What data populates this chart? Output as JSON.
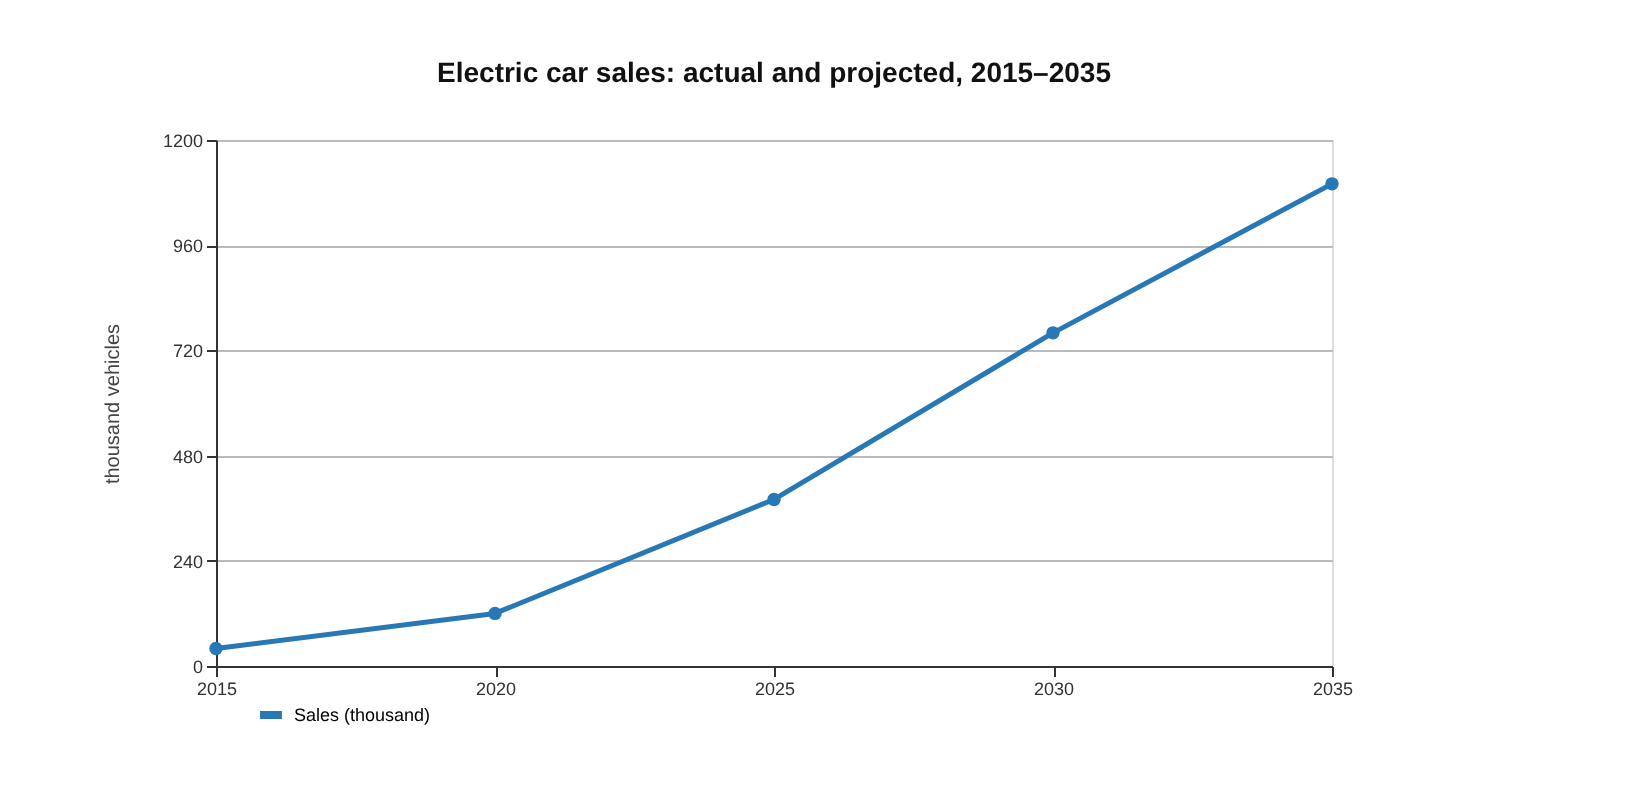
{
  "chart_data": {
    "type": "line",
    "title": "Electric car sales: actual and projected, 2015–2035",
    "ylabel": "thousand vehicles",
    "x": [
      2015,
      2020,
      2025,
      2030,
      2035
    ],
    "series": [
      {
        "name": "Sales (thousand)",
        "color": "#2878b5",
        "values": [
          40,
          120,
          380,
          760,
          1100
        ]
      }
    ],
    "xlim": [
      2015,
      2035
    ],
    "xticks": [
      2015,
      2020,
      2025,
      2030,
      2035
    ],
    "ylim": [
      0,
      1200
    ],
    "yticks": [
      0,
      240,
      480,
      720,
      960,
      1200
    ],
    "grid": "y",
    "legend": "bottom left",
    "marker": "circle",
    "line_style": "solid"
  }
}
